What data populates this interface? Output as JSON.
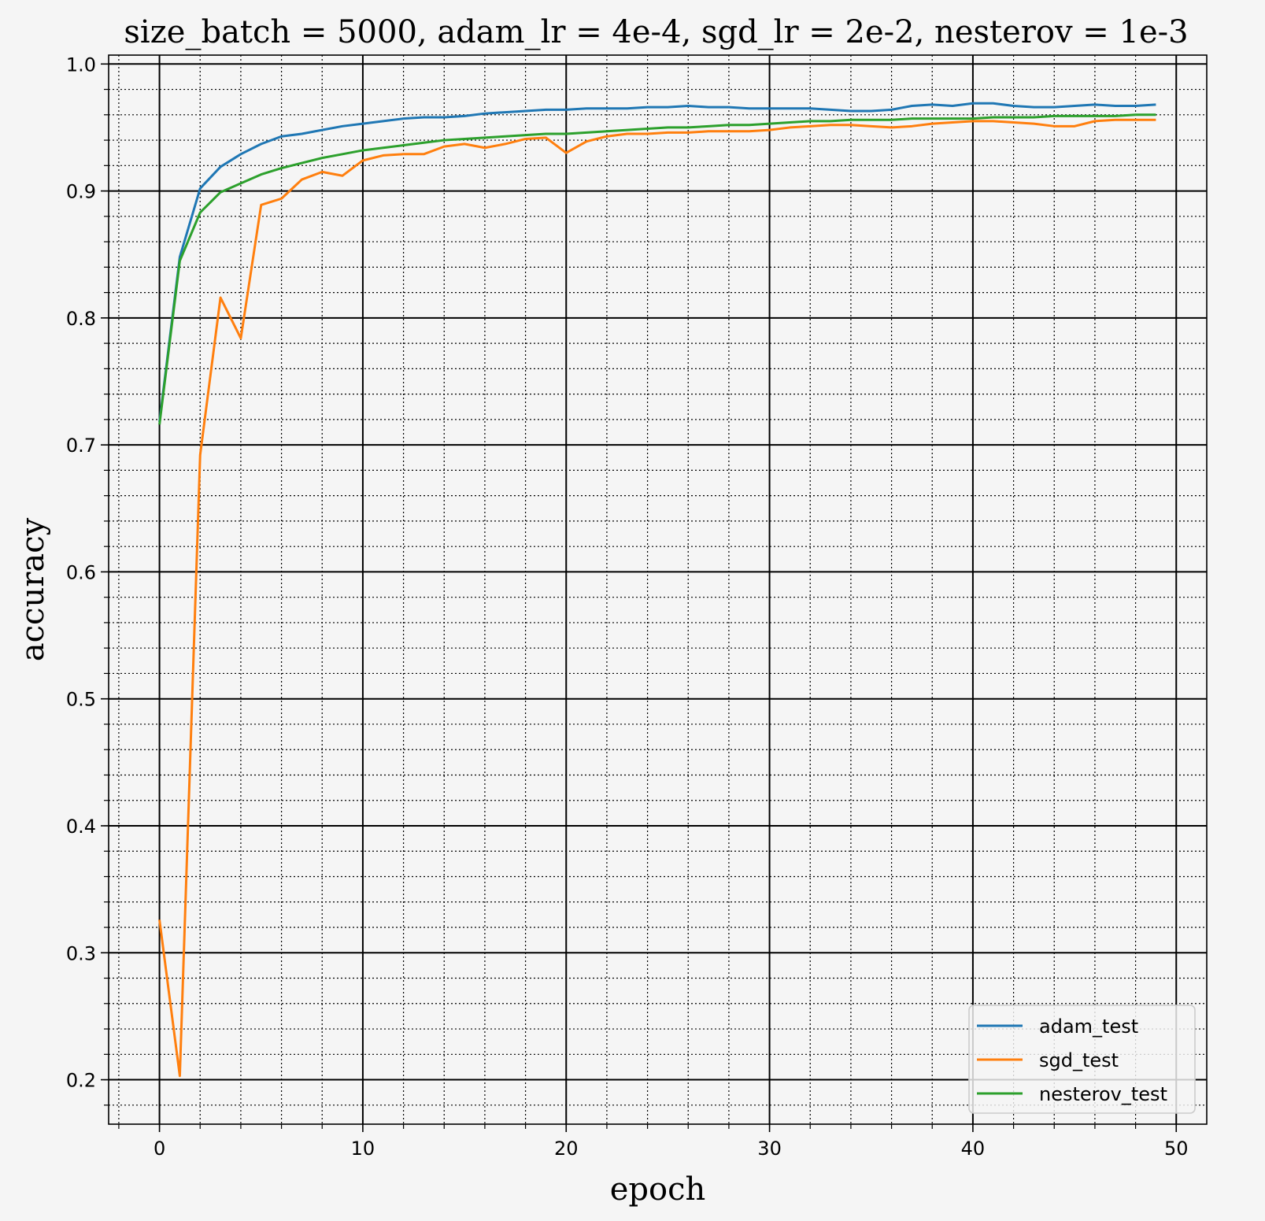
{
  "chart_data": {
    "type": "line",
    "title": "size_batch = 5000, adam_lr = 4e-4, sgd_lr = 2e-2, nesterov = 1e-3",
    "xlabel": "epoch",
    "ylabel": "accuracy",
    "xlim": [
      -2.5,
      51.5
    ],
    "ylim": [
      0.165,
      1.007
    ],
    "x_ticks": [
      0,
      10,
      20,
      30,
      40,
      50
    ],
    "x_tick_labels": [
      "0",
      "10",
      "20",
      "30",
      "40",
      "50"
    ],
    "y_ticks": [
      0.2,
      0.3,
      0.4,
      0.5,
      0.6,
      0.7,
      0.8,
      0.9,
      1.0
    ],
    "y_tick_labels": [
      "0.2",
      "0.3",
      "0.4",
      "0.5",
      "0.6",
      "0.7",
      "0.8",
      "0.9",
      "1.0"
    ],
    "x_minor_step": 2,
    "y_minor_step": 0.02,
    "grid": true,
    "legend_position": "lower-right",
    "x": [
      0,
      1,
      2,
      3,
      4,
      5,
      6,
      7,
      8,
      9,
      10,
      11,
      12,
      13,
      14,
      15,
      16,
      17,
      18,
      19,
      20,
      21,
      22,
      23,
      24,
      25,
      26,
      27,
      28,
      29,
      30,
      31,
      32,
      33,
      34,
      35,
      36,
      37,
      38,
      39,
      40,
      41,
      42,
      43,
      44,
      45,
      46,
      47,
      48,
      49
    ],
    "series": [
      {
        "name": "adam_test",
        "color": "#1f77b4",
        "values": [
          0.718,
          0.848,
          0.902,
          0.919,
          0.929,
          0.937,
          0.943,
          0.945,
          0.948,
          0.951,
          0.953,
          0.955,
          0.957,
          0.958,
          0.958,
          0.959,
          0.961,
          0.962,
          0.963,
          0.964,
          0.964,
          0.965,
          0.965,
          0.965,
          0.966,
          0.966,
          0.967,
          0.966,
          0.966,
          0.965,
          0.965,
          0.965,
          0.965,
          0.964,
          0.963,
          0.963,
          0.964,
          0.967,
          0.968,
          0.967,
          0.969,
          0.969,
          0.967,
          0.966,
          0.966,
          0.967,
          0.968,
          0.967,
          0.967,
          0.968
        ]
      },
      {
        "name": "sgd_test",
        "color": "#ff7f0e",
        "values": [
          0.326,
          0.203,
          0.692,
          0.816,
          0.784,
          0.889,
          0.894,
          0.909,
          0.915,
          0.912,
          0.924,
          0.928,
          0.929,
          0.929,
          0.935,
          0.937,
          0.934,
          0.937,
          0.941,
          0.942,
          0.93,
          0.939,
          0.943,
          0.945,
          0.945,
          0.946,
          0.946,
          0.947,
          0.947,
          0.947,
          0.948,
          0.95,
          0.951,
          0.952,
          0.952,
          0.951,
          0.95,
          0.951,
          0.953,
          0.954,
          0.955,
          0.955,
          0.954,
          0.953,
          0.951,
          0.951,
          0.955,
          0.956,
          0.956,
          0.956
        ]
      },
      {
        "name": "nesterov_test",
        "color": "#2ca02c",
        "values": [
          0.716,
          0.845,
          0.883,
          0.899,
          0.906,
          0.913,
          0.918,
          0.922,
          0.926,
          0.929,
          0.932,
          0.934,
          0.936,
          0.938,
          0.94,
          0.941,
          0.942,
          0.943,
          0.944,
          0.945,
          0.945,
          0.946,
          0.947,
          0.948,
          0.949,
          0.95,
          0.95,
          0.951,
          0.952,
          0.952,
          0.953,
          0.954,
          0.955,
          0.955,
          0.956,
          0.956,
          0.956,
          0.957,
          0.957,
          0.957,
          0.957,
          0.958,
          0.958,
          0.958,
          0.959,
          0.959,
          0.959,
          0.959,
          0.96,
          0.96
        ]
      }
    ]
  }
}
